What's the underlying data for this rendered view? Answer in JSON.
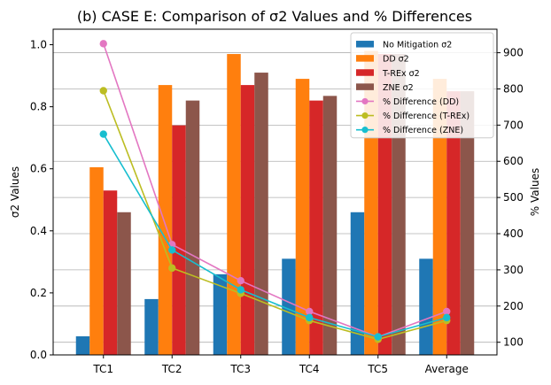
{
  "chart_data": {
    "type": "bar",
    "title": "(b) CASE E: Comparison of σ2 Values and % Differences",
    "xlabel": "",
    "ylabel": "σ2 Values",
    "ylabel_right": "% Values",
    "categories": [
      "TC1",
      "TC2",
      "TC3",
      "TC4",
      "TC5",
      "Average"
    ],
    "ylim": [
      0,
      1.05
    ],
    "ylim_right": [
      65,
      965
    ],
    "yticks": [
      "0.0",
      "0.2",
      "0.4",
      "0.6",
      "0.8",
      "1.0"
    ],
    "yticks_right": [
      "100",
      "200",
      "300",
      "400",
      "500",
      "600",
      "700",
      "800",
      "900"
    ],
    "grid": true,
    "legend_position": "top-right",
    "bar_series": [
      {
        "name": "No Mitigation σ2",
        "color": "#1f77b4",
        "values": [
          0.06,
          0.18,
          0.26,
          0.31,
          0.46,
          0.31
        ]
      },
      {
        "name": "DD σ2",
        "color": "#ff7f0e",
        "values": [
          0.605,
          0.87,
          0.97,
          0.89,
          0.98,
          0.89
        ]
      },
      {
        "name": "T-REx σ2",
        "color": "#d62728",
        "values": [
          0.53,
          0.74,
          0.87,
          0.82,
          0.97,
          0.85
        ]
      },
      {
        "name": "ZNE σ2",
        "color": "#8c564b",
        "values": [
          0.46,
          0.82,
          0.91,
          0.835,
          0.97,
          0.85
        ]
      }
    ],
    "line_series": [
      {
        "name": "% Difference (DD)",
        "color": "#e377c2",
        "values": [
          925,
          370,
          270,
          185,
          115,
          185
        ]
      },
      {
        "name": "% Difference (T-REx)",
        "color": "#bcbd22",
        "values": [
          795,
          305,
          235,
          160,
          108,
          160
        ]
      },
      {
        "name": "% Difference (ZNE)",
        "color": "#17becf",
        "values": [
          675,
          355,
          245,
          168,
          115,
          168
        ]
      }
    ]
  }
}
